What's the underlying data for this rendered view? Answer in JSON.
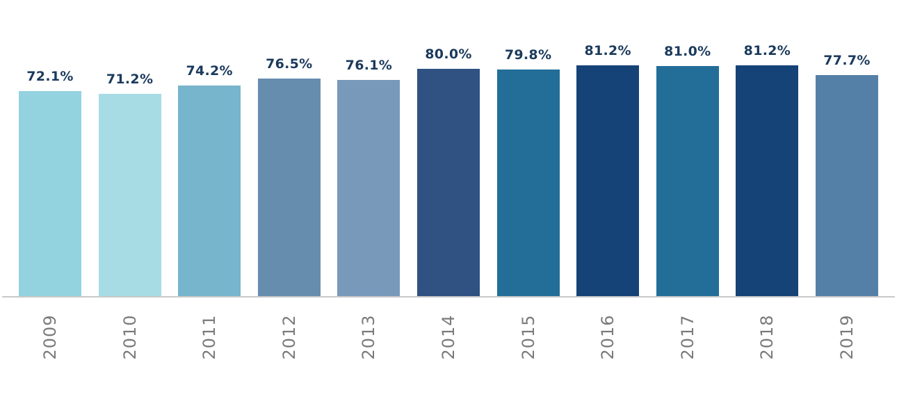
{
  "chart_data": {
    "type": "bar",
    "title": "",
    "xlabel": "",
    "ylabel": "",
    "categories": [
      "2009",
      "2010",
      "2011",
      "2012",
      "2013",
      "2014",
      "2015",
      "2016",
      "2017",
      "2018",
      "2019"
    ],
    "values": [
      72.1,
      71.2,
      74.2,
      76.5,
      76.1,
      80.0,
      79.8,
      81.2,
      81.0,
      81.2,
      77.7
    ],
    "labels": [
      "72.1%",
      "71.2%",
      "74.2%",
      "76.5%",
      "76.1%",
      "80.0%",
      "79.8%",
      "81.2%",
      "81.0%",
      "81.2%",
      "77.7%"
    ],
    "colors": [
      "#93d3e0",
      "#a8dce5",
      "#77b5cc",
      "#668cae",
      "#7899ba",
      "#2f5283",
      "#226e99",
      "#164377",
      "#226e99",
      "#164377",
      "#5480a7"
    ],
    "ylim": [
      0,
      100
    ],
    "grid": false,
    "legend": null,
    "value_label_color": "#1b3a5c",
    "tick_label_color": "#7a7a7a",
    "axis_color": "#c9c9c9"
  }
}
